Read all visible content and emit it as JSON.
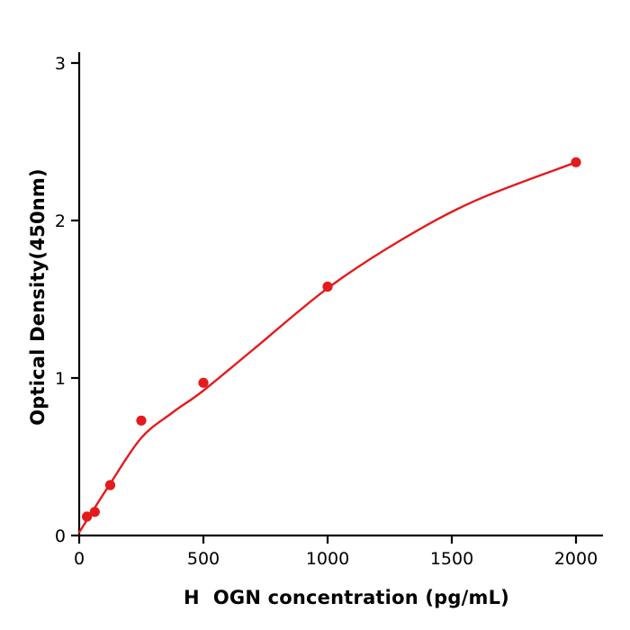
{
  "figure": {
    "background": "#ffffff"
  },
  "chart_data": {
    "type": "scatter",
    "title": "",
    "xlabel": "H  OGN concentration (pg/mL)",
    "ylabel": "Optical Density(450nm)",
    "x": [
      31.25,
      62.5,
      125,
      250,
      500,
      1000,
      2000
    ],
    "y": [
      0.12,
      0.15,
      0.32,
      0.73,
      0.97,
      1.58,
      2.37
    ],
    "curve_points": {
      "x": [
        0,
        60,
        125,
        250,
        375,
        500,
        700,
        1000,
        1300,
        1600,
        2000
      ],
      "y": [
        0.02,
        0.17,
        0.33,
        0.62,
        0.78,
        0.92,
        1.18,
        1.57,
        1.88,
        2.13,
        2.37
      ]
    },
    "x_ticks": [
      0,
      500,
      1000,
      1500,
      2000
    ],
    "y_ticks": [
      0,
      1,
      2,
      3
    ],
    "xlim": [
      0,
      2100
    ],
    "ylim": [
      0,
      3.05
    ],
    "grid": false,
    "legend": "none",
    "marker": "circle",
    "accent_color": "#e41a1c",
    "axis_color": "#000000",
    "background_color": "#ffffff"
  }
}
